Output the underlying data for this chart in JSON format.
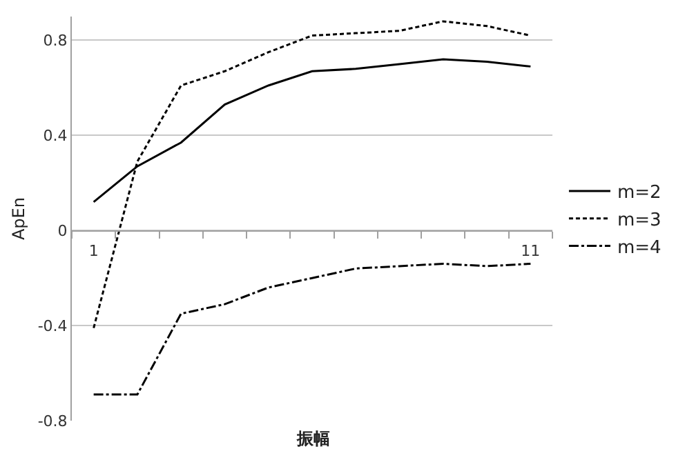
{
  "chart_data": {
    "type": "line",
    "xlabel": "振幅",
    "ylabel": "ApEn",
    "categories": [
      "1",
      null,
      null,
      null,
      null,
      null,
      null,
      null,
      null,
      null,
      "11"
    ],
    "series": [
      {
        "name": "m=2",
        "color": "#000000",
        "line_style": "solid",
        "values": [
          0.12,
          0.27,
          0.37,
          0.53,
          0.61,
          0.67,
          0.68,
          0.7,
          0.72,
          0.71,
          0.69
        ]
      },
      {
        "name": "m=3",
        "color": "#000000",
        "line_style": "dashed",
        "values": [
          -0.41,
          0.29,
          0.61,
          0.67,
          0.75,
          0.82,
          0.83,
          0.84,
          0.88,
          0.86,
          0.82
        ]
      },
      {
        "name": "m=4",
        "color": "#000000",
        "line_style": "dashdot",
        "values": [
          -0.69,
          -0.69,
          -0.35,
          -0.31,
          -0.24,
          -0.2,
          -0.16,
          -0.15,
          -0.14,
          -0.15,
          -0.14
        ]
      }
    ],
    "ylim": [
      -0.8,
      0.9
    ],
    "yticks": [
      -0.8,
      -0.4,
      0,
      0.4,
      0.8
    ],
    "grid": "y",
    "legend": "right",
    "marker": "none"
  }
}
